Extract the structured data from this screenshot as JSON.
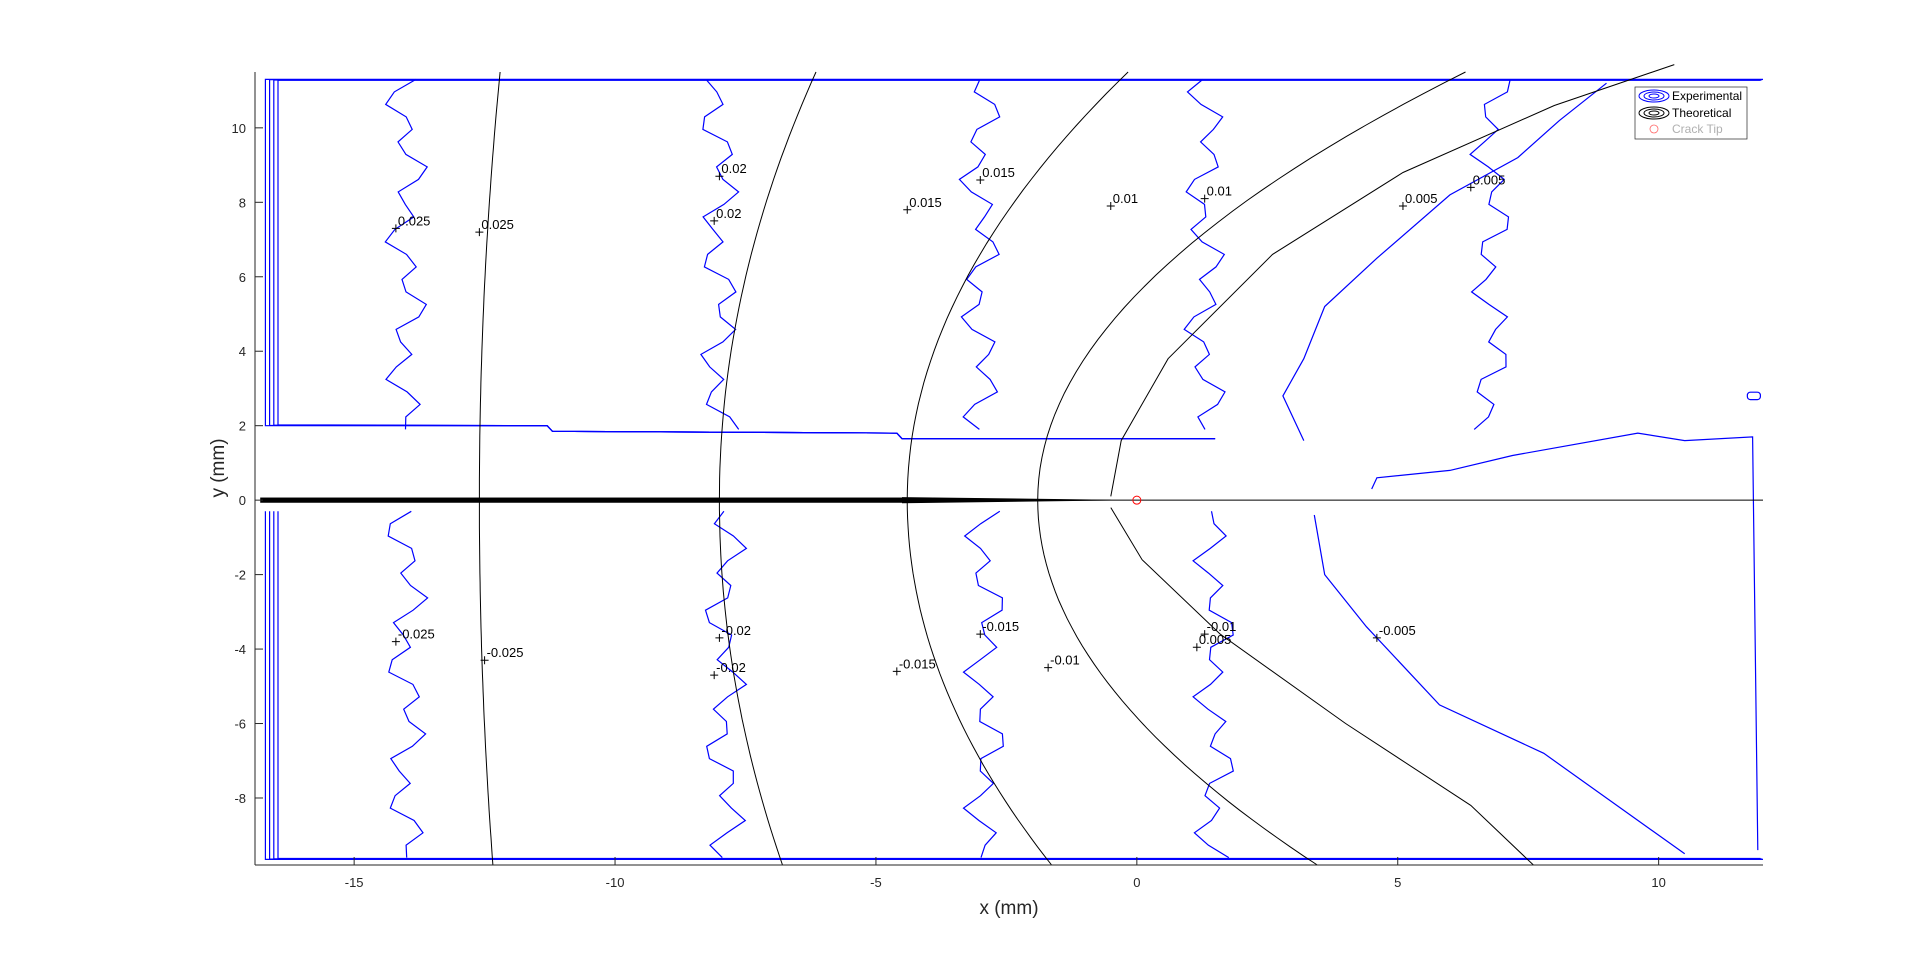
{
  "chart_data": {
    "type": "contour",
    "xlabel": "x (mm)",
    "ylabel": "y (mm)",
    "xlim": [
      -16.9,
      12
    ],
    "ylim": [
      -9.8,
      11.5
    ],
    "xticks": [
      "-15",
      "-10",
      "-5",
      "0",
      "5",
      "10"
    ],
    "yticks": [
      "-8",
      "-6",
      "-4",
      "-2",
      "0",
      "2",
      "4",
      "6",
      "8",
      "10"
    ],
    "legend": {
      "placement": "top-right",
      "entries": [
        "Experimental",
        "Theoretical",
        "Crack Tip"
      ]
    },
    "colors": {
      "experimental": "#0000ff",
      "theoretical": "#000000",
      "crack_tip": "#ff0000",
      "axes": "#262626"
    },
    "crack_tip": {
      "x": 0,
      "y": 0
    },
    "contour_labels": {
      "experimental": [
        {
          "text": "0.025",
          "x": -14.2,
          "y": 7.3
        },
        {
          "text": "0.02",
          "x": -8.0,
          "y": 8.7
        },
        {
          "text": "0.02",
          "x": -8.1,
          "y": 7.5
        },
        {
          "text": "0.015",
          "x": -3.0,
          "y": 8.6
        },
        {
          "text": "0.01",
          "x": 1.3,
          "y": 8.1
        },
        {
          "text": "0.005",
          "x": 6.4,
          "y": 8.4
        },
        {
          "text": "-0.025",
          "x": -14.2,
          "y": -3.8
        },
        {
          "text": "-0.02",
          "x": -8.0,
          "y": -3.7
        },
        {
          "text": "-0.02",
          "x": -8.1,
          "y": -4.7
        },
        {
          "text": "-0.015",
          "x": -3.0,
          "y": -3.6
        },
        {
          "text": "-0.01",
          "x": 1.3,
          "y": -3.6
        },
        {
          "text": "-0.005",
          "x": 4.6,
          "y": -3.7
        }
      ],
      "theoretical": [
        {
          "text": "0.025",
          "x": -12.6,
          "y": 7.2
        },
        {
          "text": "0.015",
          "x": -4.4,
          "y": 7.8
        },
        {
          "text": "0.01",
          "x": -0.5,
          "y": 7.9
        },
        {
          "text": "0.005",
          "x": 5.1,
          "y": 7.9
        },
        {
          "text": "-0.025",
          "x": -12.5,
          "y": -4.3
        },
        {
          "text": "-0.015",
          "x": -4.6,
          "y": -4.6
        },
        {
          "text": "-0.01",
          "x": -1.7,
          "y": -4.5
        },
        {
          "text": "0.005",
          "x": 1.15,
          "y": -3.95
        }
      ]
    }
  }
}
